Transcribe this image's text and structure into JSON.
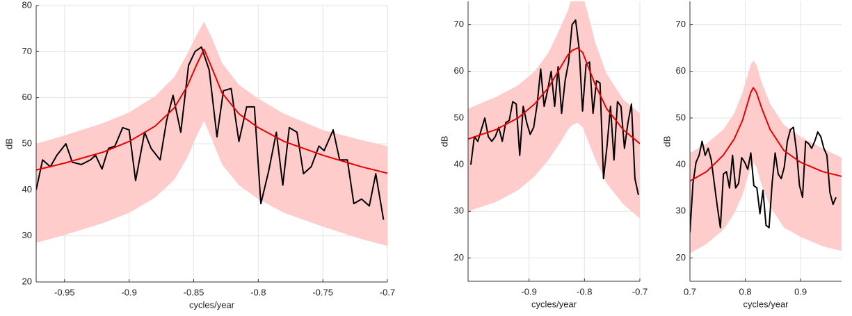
{
  "chart_data": [
    {
      "type": "line",
      "xlabel": "cycles/year",
      "ylabel": "dB",
      "xlim": [
        -0.972,
        -0.7
      ],
      "ylim": [
        20,
        80
      ],
      "xticks": [
        -0.95,
        -0.9,
        -0.85,
        -0.8,
        -0.75,
        -0.7
      ],
      "yticks": [
        20,
        30,
        40,
        50,
        60,
        70,
        80
      ],
      "grid": true,
      "band": {
        "color": "#ffcccc",
        "x": [
          -0.972,
          -0.95,
          -0.92,
          -0.9,
          -0.88,
          -0.865,
          -0.855,
          -0.848,
          -0.842,
          -0.836,
          -0.828,
          -0.815,
          -0.8,
          -0.78,
          -0.75,
          -0.72,
          -0.7
        ],
        "upper": [
          50,
          51.8,
          54.5,
          56.8,
          60.3,
          64.5,
          69.5,
          73.5,
          76.5,
          73,
          67.5,
          62.8,
          59.8,
          56.5,
          53,
          50.8,
          49.5
        ],
        "lower": [
          28.5,
          30.2,
          32.8,
          35,
          38.3,
          42.2,
          47,
          51.5,
          55,
          51,
          45.5,
          41,
          38,
          35,
          32,
          29.3,
          27.8
        ]
      },
      "series": [
        {
          "color": "#000000",
          "x": [
            -0.972,
            -0.967,
            -0.961,
            -0.956,
            -0.949,
            -0.944,
            -0.937,
            -0.93,
            -0.926,
            -0.921,
            -0.916,
            -0.911,
            -0.905,
            -0.9,
            -0.895,
            -0.888,
            -0.883,
            -0.876,
            -0.871,
            -0.866,
            -0.86,
            -0.854,
            -0.849,
            -0.844,
            -0.838,
            -0.832,
            -0.827,
            -0.821,
            -0.815,
            -0.809,
            -0.803,
            -0.798,
            -0.792,
            -0.786,
            -0.781,
            -0.776,
            -0.77,
            -0.765,
            -0.759,
            -0.753,
            -0.749,
            -0.742,
            -0.737,
            -0.731,
            -0.726,
            -0.72,
            -0.714,
            -0.709,
            -0.703
          ],
          "values": [
            40,
            46.5,
            45,
            47.5,
            50,
            46,
            45.5,
            46.5,
            47.5,
            44.5,
            49,
            49.5,
            53.5,
            53,
            42,
            52.5,
            49,
            46.5,
            55,
            60.5,
            52.5,
            67,
            70,
            71,
            66,
            51.5,
            61.5,
            62,
            50.5,
            58,
            58,
            37,
            44,
            52.5,
            41,
            53.5,
            52.5,
            43.5,
            45,
            49.5,
            48.5,
            53,
            46.5,
            46.5,
            37,
            38,
            36.5,
            43.5,
            33.5
          ]
        },
        {
          "color": "#e60000",
          "x": [
            -0.972,
            -0.95,
            -0.92,
            -0.9,
            -0.88,
            -0.865,
            -0.855,
            -0.848,
            -0.842,
            -0.836,
            -0.828,
            -0.815,
            -0.8,
            -0.78,
            -0.75,
            -0.72,
            -0.7
          ],
          "values": [
            44.3,
            45.8,
            48.2,
            50.5,
            53.8,
            57.8,
            62.5,
            67,
            70.5,
            66.5,
            61,
            56.5,
            53.5,
            50.5,
            47.5,
            45,
            43.6
          ]
        }
      ]
    },
    {
      "type": "line",
      "xlabel": "cycles/year",
      "ylabel": "dB",
      "xlim": [
        -1.01,
        -0.7
      ],
      "ylim": [
        15,
        75
      ],
      "xticks": [
        -0.9,
        -0.8,
        -0.7
      ],
      "yticks": [
        20,
        30,
        40,
        50,
        60,
        70
      ],
      "grid": true,
      "band": {
        "color": "#ffcccc",
        "x": [
          -1.01,
          -0.96,
          -0.92,
          -0.89,
          -0.865,
          -0.845,
          -0.83,
          -0.822,
          -0.8125,
          -0.803,
          -0.795,
          -0.78,
          -0.76,
          -0.73,
          -0.7
        ],
        "upper": [
          52,
          54.5,
          57,
          60,
          64,
          69,
          73,
          76,
          77.5,
          76,
          73,
          66,
          59.5,
          54,
          51
        ],
        "lower": [
          30,
          32,
          34.5,
          37.5,
          41,
          44.5,
          47.5,
          48.5,
          49,
          48,
          45.5,
          41,
          36,
          31.5,
          28.5
        ]
      },
      "series": [
        {
          "color": "#000000",
          "x": [
            -1.005,
            -0.9987,
            -0.9924,
            -0.9861,
            -0.9798,
            -0.9735,
            -0.9672,
            -0.9609,
            -0.9546,
            -0.9483,
            -0.942,
            -0.9357,
            -0.9294,
            -0.9231,
            -0.9168,
            -0.9105,
            -0.9042,
            -0.8979,
            -0.8916,
            -0.8853,
            -0.879,
            -0.8727,
            -0.8664,
            -0.8601,
            -0.8538,
            -0.8475,
            -0.8412,
            -0.8349,
            -0.8286,
            -0.8223,
            -0.816,
            -0.8097,
            -0.8034,
            -0.7971,
            -0.7908,
            -0.7845,
            -0.7782,
            -0.7719,
            -0.7656,
            -0.7593,
            -0.753,
            -0.7467,
            -0.7404,
            -0.7341,
            -0.7278,
            -0.7215,
            -0.7152,
            -0.7089,
            -0.7026
          ],
          "values": [
            40,
            46,
            45,
            47.5,
            50,
            46,
            45,
            46,
            48,
            45,
            49,
            49.5,
            53.5,
            53,
            42,
            52.5,
            49,
            46.5,
            48,
            53,
            60.5,
            52.5,
            56,
            60,
            52.5,
            61,
            51,
            58,
            62,
            70,
            71,
            65,
            51.5,
            61.5,
            62,
            51,
            58,
            57.5,
            37,
            44,
            52.5,
            41,
            53.5,
            52.5,
            43.5,
            49,
            53,
            37,
            33.5
          ]
        },
        {
          "color": "#e60000",
          "x": [
            -1.01,
            -0.96,
            -0.92,
            -0.89,
            -0.865,
            -0.845,
            -0.83,
            -0.822,
            -0.8125,
            -0.803,
            -0.795,
            -0.78,
            -0.76,
            -0.73,
            -0.7
          ],
          "values": [
            45.5,
            47.5,
            50,
            53,
            56.5,
            60.5,
            63.5,
            64.5,
            65,
            64,
            61.5,
            57,
            52,
            47.5,
            44.5
          ]
        }
      ]
    },
    {
      "type": "line",
      "xlabel": "cycles/year",
      "ylabel": "dB",
      "xlim": [
        0.7,
        0.974
      ],
      "ylim": [
        15,
        75
      ],
      "xticks": [
        0.7,
        0.8,
        0.9
      ],
      "yticks": [
        20,
        30,
        40,
        50,
        60,
        70
      ],
      "grid": true,
      "band": {
        "color": "#ffcccc",
        "x": [
          0.7,
          0.73,
          0.76,
          0.78,
          0.795,
          0.805,
          0.81,
          0.8145,
          0.82,
          0.83,
          0.845,
          0.87,
          0.9,
          0.94,
          0.974
        ],
        "upper": [
          42.5,
          44.5,
          47.5,
          51,
          55.5,
          59.5,
          61.5,
          62.3,
          61.5,
          57.5,
          53,
          48.5,
          46,
          43.5,
          41.5
        ],
        "lower": [
          21,
          23,
          26,
          29.5,
          33.5,
          37.5,
          39.5,
          40.5,
          39.5,
          35.5,
          31,
          26.5,
          24.5,
          22.5,
          21.5
        ]
      },
      "series": [
        {
          "color": "#000000",
          "x": [
            0.7,
            0.7055,
            0.711,
            0.7165,
            0.722,
            0.7275,
            0.733,
            0.7385,
            0.744,
            0.7495,
            0.755,
            0.7605,
            0.766,
            0.7715,
            0.777,
            0.7825,
            0.788,
            0.7935,
            0.799,
            0.8045,
            0.81,
            0.8155,
            0.821,
            0.8265,
            0.832,
            0.8375,
            0.843,
            0.8485,
            0.854,
            0.8595,
            0.865,
            0.8705,
            0.876,
            0.8815,
            0.887,
            0.8925,
            0.898,
            0.9035,
            0.909,
            0.9145,
            0.92,
            0.9255,
            0.931,
            0.9365,
            0.942,
            0.9475,
            0.953,
            0.9585,
            0.964
          ],
          "values": [
            25.5,
            36,
            40.5,
            42,
            45,
            42,
            43.5,
            41,
            36,
            31,
            26.5,
            38,
            38.5,
            35,
            42,
            35,
            36,
            41.5,
            40.5,
            39,
            42.5,
            35.5,
            35,
            29.5,
            34.5,
            27,
            26.5,
            36,
            42.5,
            38,
            37,
            39.5,
            45,
            47.5,
            48,
            43,
            35.5,
            33,
            45,
            44.5,
            43.5,
            45,
            47,
            46,
            43.5,
            42,
            34,
            31.5,
            33
          ]
        },
        {
          "color": "#e60000",
          "x": [
            0.7,
            0.73,
            0.76,
            0.78,
            0.795,
            0.805,
            0.81,
            0.8145,
            0.82,
            0.83,
            0.845,
            0.87,
            0.9,
            0.94,
            0.974
          ],
          "values": [
            36.5,
            38.5,
            42,
            45.5,
            49.5,
            53.5,
            55.5,
            56.5,
            55.5,
            52,
            47.5,
            43,
            40.5,
            38.5,
            37.5
          ]
        }
      ]
    }
  ]
}
